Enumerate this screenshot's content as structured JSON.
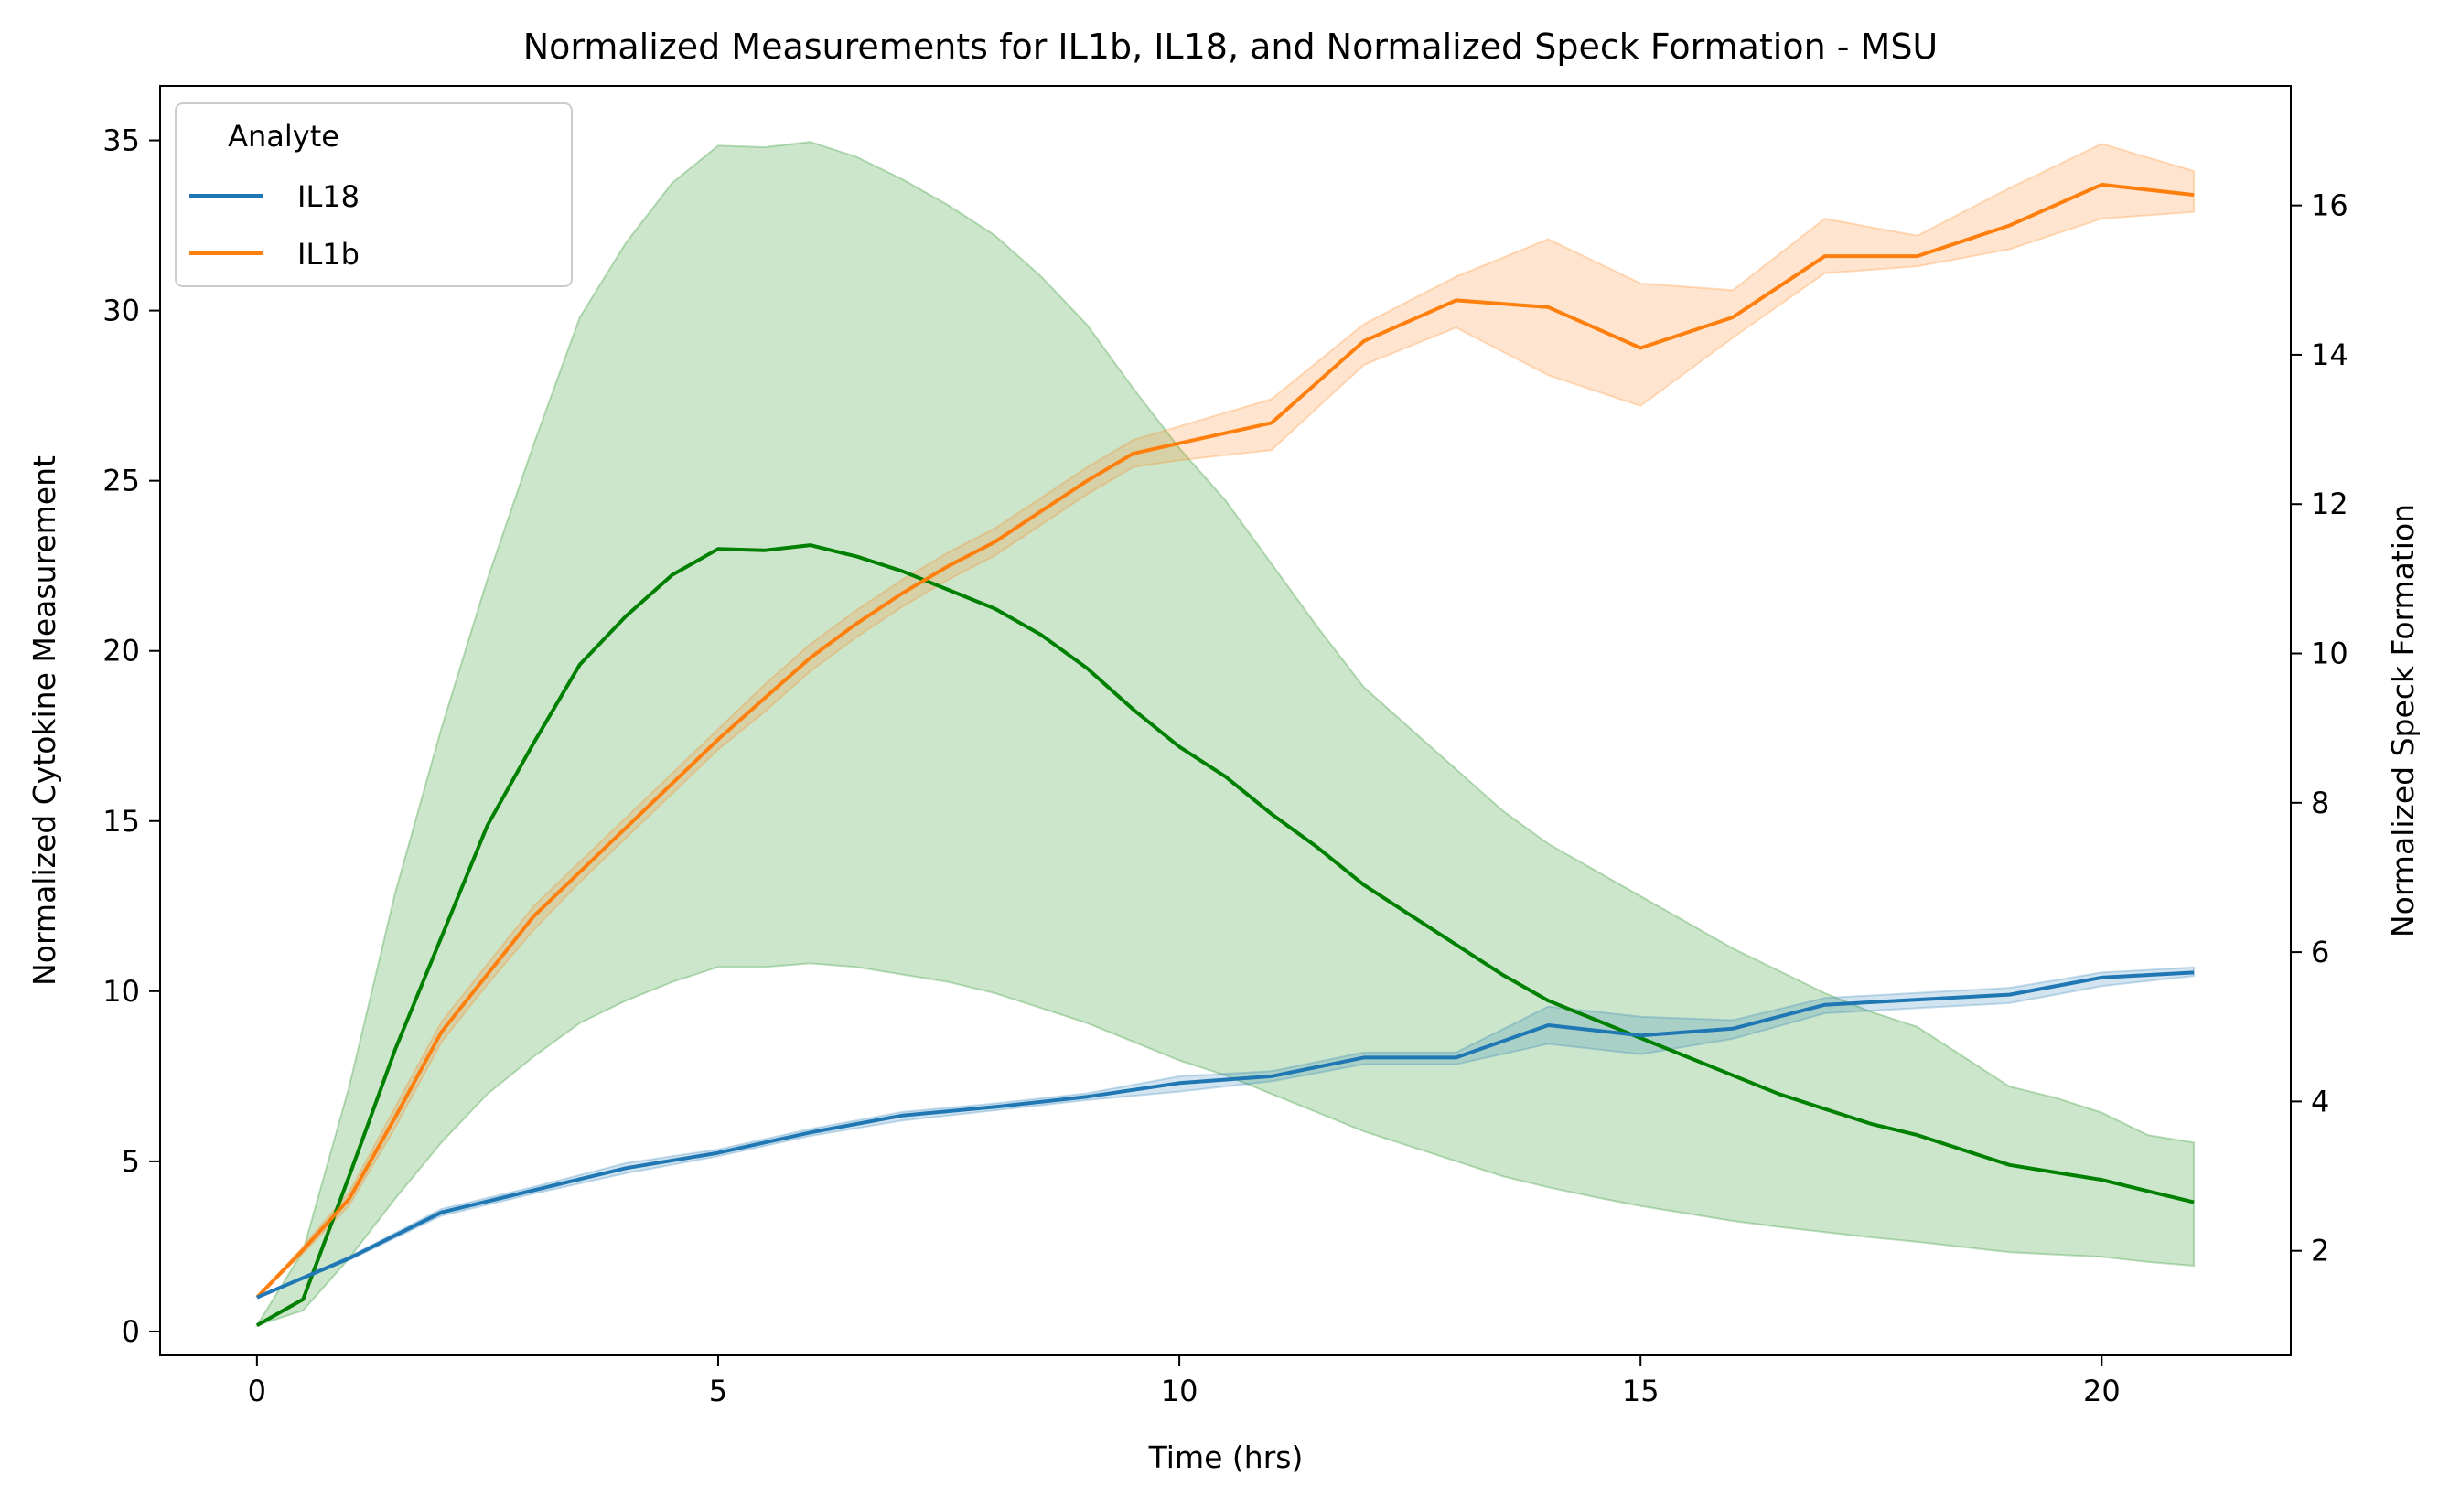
{
  "chart_data": {
    "type": "line",
    "title": "Normalized Measurements for IL1b, IL18, and Normalized Speck Formation - MSU",
    "xlabel": "Time (hrs)",
    "ylabel": "Normalized Cytokine Measurement",
    "ylabel_right": "Normalized Speck Formation",
    "xlim": [
      -1.05,
      22.05
    ],
    "ylim": [
      -0.7,
      36.6
    ],
    "ylim_right": [
      0.6,
      17.6
    ],
    "xticks": [
      0,
      5,
      10,
      15,
      20
    ],
    "yticks": [
      0,
      5,
      10,
      15,
      20,
      25,
      30,
      35
    ],
    "yticks_right": [
      2,
      4,
      6,
      8,
      10,
      12,
      14,
      16
    ],
    "grid": false,
    "legend": {
      "title": "Analyte",
      "placement": "top-left",
      "entries": [
        "IL18",
        "IL1b"
      ]
    },
    "series": [
      {
        "name": "IL18",
        "axis": "left",
        "color": "#1f77b4",
        "x": [
          0,
          1,
          2,
          3,
          4,
          5,
          6,
          7,
          8,
          9,
          10,
          11,
          12,
          13,
          14,
          15,
          16,
          17,
          18,
          19,
          20,
          21
        ],
        "values": [
          1.0,
          2.15,
          3.5,
          4.15,
          4.8,
          5.25,
          5.85,
          6.35,
          6.6,
          6.9,
          7.3,
          7.5,
          8.05,
          8.05,
          9.0,
          8.7,
          8.9,
          9.6,
          9.75,
          9.9,
          10.4,
          10.55
        ],
        "lower": [
          1.0,
          2.1,
          3.4,
          4.05,
          4.65,
          5.15,
          5.75,
          6.2,
          6.5,
          6.8,
          7.05,
          7.35,
          7.85,
          7.85,
          8.45,
          8.15,
          8.6,
          9.35,
          9.5,
          9.65,
          10.15,
          10.45
        ],
        "upper": [
          1.0,
          2.2,
          3.6,
          4.25,
          4.95,
          5.35,
          5.95,
          6.45,
          6.7,
          7.0,
          7.5,
          7.65,
          8.2,
          8.2,
          9.55,
          9.25,
          9.15,
          9.8,
          9.95,
          10.1,
          10.55,
          10.7
        ]
      },
      {
        "name": "IL1b",
        "axis": "left",
        "color": "#ff7f0e",
        "x": [
          0,
          0.5,
          1,
          1.5,
          2,
          2.5,
          3,
          3.5,
          4,
          4.5,
          5,
          5.5,
          6,
          6.5,
          7,
          7.5,
          8,
          8.5,
          9,
          9.5,
          10,
          11,
          12,
          13,
          14,
          15,
          16,
          17,
          18,
          19,
          20,
          21
        ],
        "values": [
          1.0,
          2.4,
          3.9,
          6.3,
          8.8,
          10.5,
          12.2,
          13.5,
          14.8,
          16.1,
          17.4,
          18.6,
          19.8,
          20.8,
          21.7,
          22.5,
          23.2,
          24.1,
          25.0,
          25.8,
          26.1,
          26.7,
          29.1,
          30.3,
          30.1,
          28.9,
          29.8,
          31.6,
          31.6,
          32.5,
          33.7,
          33.4
        ],
        "lower": [
          1.0,
          2.3,
          3.7,
          6.0,
          8.5,
          10.2,
          11.8,
          13.2,
          14.5,
          15.8,
          17.1,
          18.2,
          19.4,
          20.4,
          21.3,
          22.1,
          22.8,
          23.7,
          24.6,
          25.4,
          25.6,
          25.9,
          28.4,
          29.5,
          28.1,
          27.2,
          29.2,
          31.1,
          31.3,
          31.8,
          32.7,
          32.9
        ],
        "upper": [
          1.0,
          2.5,
          4.1,
          6.6,
          9.1,
          10.8,
          12.5,
          13.8,
          15.1,
          16.4,
          17.7,
          19.0,
          20.2,
          21.2,
          22.1,
          22.9,
          23.6,
          24.5,
          25.4,
          26.2,
          26.6,
          27.4,
          29.6,
          31.0,
          32.1,
          30.8,
          30.6,
          32.7,
          32.2,
          33.6,
          34.9,
          34.1
        ]
      },
      {
        "name": "",
        "axis": "right",
        "color": "#008000",
        "x": [
          0,
          0.5,
          1,
          1.5,
          2,
          2.5,
          3,
          3.5,
          4,
          4.5,
          5,
          5.5,
          6,
          6.5,
          7,
          7.5,
          8,
          8.5,
          9,
          9.5,
          10,
          10.5,
          11,
          11.5,
          12,
          12.5,
          13,
          13.5,
          14,
          14.5,
          15,
          15.5,
          16,
          16.5,
          17,
          17.5,
          18,
          18.5,
          19,
          19.5,
          20,
          20.5,
          21
        ],
        "values": [
          1.0,
          1.35,
          3.0,
          4.7,
          6.2,
          7.7,
          8.8,
          9.85,
          10.5,
          11.05,
          11.4,
          11.38,
          11.45,
          11.3,
          11.1,
          10.85,
          10.6,
          10.25,
          9.8,
          9.25,
          8.75,
          8.35,
          7.85,
          7.4,
          6.9,
          6.5,
          6.1,
          5.7,
          5.35,
          5.1,
          4.85,
          4.6,
          4.35,
          4.1,
          3.9,
          3.7,
          3.55,
          3.35,
          3.15,
          3.05,
          2.95,
          2.8,
          2.65
        ],
        "lower": [
          1.0,
          1.2,
          1.9,
          2.7,
          3.45,
          4.1,
          4.6,
          5.05,
          5.35,
          5.6,
          5.8,
          5.8,
          5.85,
          5.8,
          5.7,
          5.6,
          5.45,
          5.25,
          5.05,
          4.8,
          4.55,
          4.35,
          4.1,
          3.85,
          3.6,
          3.4,
          3.2,
          3.0,
          2.85,
          2.72,
          2.6,
          2.5,
          2.4,
          2.32,
          2.25,
          2.18,
          2.12,
          2.05,
          1.98,
          1.95,
          1.92,
          1.85,
          1.8
        ],
        "upper": [
          1.0,
          2.0,
          4.2,
          6.8,
          9.0,
          11.0,
          12.8,
          14.5,
          15.5,
          16.3,
          16.8,
          16.78,
          16.85,
          16.65,
          16.35,
          16.0,
          15.6,
          15.05,
          14.4,
          13.55,
          12.75,
          12.05,
          11.2,
          10.35,
          9.55,
          9.0,
          8.45,
          7.9,
          7.45,
          7.1,
          6.75,
          6.4,
          6.05,
          5.75,
          5.45,
          5.2,
          5.0,
          4.6,
          4.2,
          4.05,
          3.85,
          3.55,
          3.45
        ]
      }
    ]
  }
}
